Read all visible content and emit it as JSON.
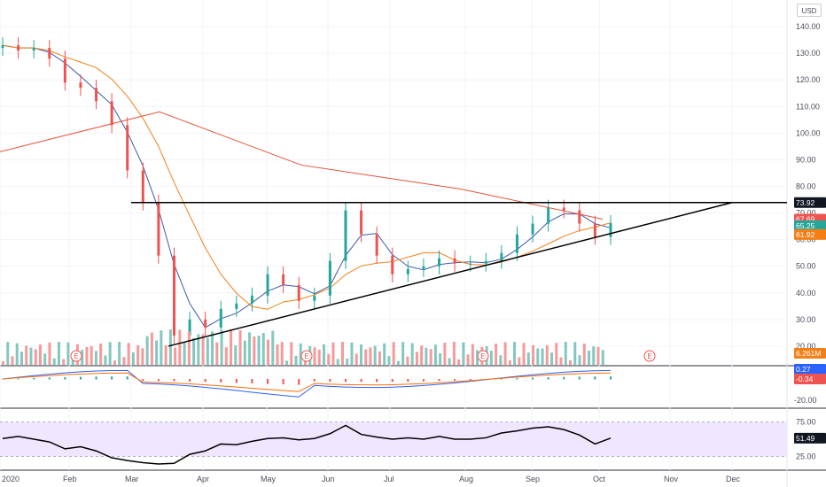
{
  "currency_label": "USD",
  "colors": {
    "up": "#26a69a",
    "down": "#ef5350",
    "volume_up": "#83c8c0",
    "volume_down": "#f59a9a",
    "sma_short": "#3d5aa9",
    "sma_mid": "#f57f17",
    "sma_long": "#e0533b",
    "trendline": "#000000",
    "rsi_band_fill": "#f0e6ff",
    "rsi_line": "#000000",
    "macd_line": "#2962ff",
    "signal_line": "#ff6d00",
    "tag_blue": "#2962ff",
    "tag_red": "#ef5350",
    "tag_orange": "#f57f17",
    "tag_teal": "#26a69a",
    "tag_black": "#131722"
  },
  "chart_data": [
    {
      "type": "candlestick",
      "pane": "price",
      "x_labels": [
        "2020",
        "Feb",
        "Mar",
        "Apr",
        "May",
        "Jun",
        "Jul",
        "Aug",
        "Sep",
        "Oct",
        "Nov",
        "Dec"
      ],
      "y_ticks": [
        "140.00",
        "130.00",
        "120.00",
        "110.00",
        "100.00",
        "90.00",
        "80.00",
        "70.00",
        "60.00",
        "50.00",
        "40.00",
        "30.00",
        "20.00"
      ],
      "ylim": [
        13,
        146
      ],
      "series": [
        {
          "name": "close",
          "x": [
            "2020-01-02",
            "2020-01-09",
            "2020-01-16",
            "2020-01-23",
            "2020-01-30",
            "2020-02-06",
            "2020-02-13",
            "2020-02-20",
            "2020-02-27",
            "2020-03-05",
            "2020-03-12",
            "2020-03-19",
            "2020-03-26",
            "2020-04-02",
            "2020-04-09",
            "2020-04-16",
            "2020-04-23",
            "2020-04-30",
            "2020-05-07",
            "2020-05-14",
            "2020-05-21",
            "2020-05-28",
            "2020-06-04",
            "2020-06-11",
            "2020-06-18",
            "2020-06-25",
            "2020-07-02",
            "2020-07-09",
            "2020-07-16",
            "2020-07-23",
            "2020-07-30",
            "2020-08-06",
            "2020-08-13",
            "2020-08-20",
            "2020-08-27",
            "2020-09-03",
            "2020-09-10",
            "2020-09-17",
            "2020-09-24",
            "2020-10-01"
          ],
          "values": [
            133,
            131,
            132,
            128,
            119,
            117,
            112,
            103,
            86,
            74,
            54,
            24,
            30,
            27,
            34,
            36,
            39,
            47,
            43,
            37,
            39,
            52,
            71,
            62,
            54,
            47,
            49,
            50,
            53,
            51,
            51,
            52,
            55,
            62,
            66,
            72,
            71,
            66,
            61,
            66.19
          ]
        }
      ],
      "price_labels": [
        "73.92",
        "67.69",
        "66.19",
        "65.25",
        "61.92"
      ],
      "earnings_markers": [
        "E",
        "E",
        "E",
        "E"
      ]
    },
    {
      "type": "bar",
      "pane": "volume",
      "title": "",
      "price_labels": [
        "6.261M"
      ],
      "note": "Volume histogram with 30-period average"
    },
    {
      "type": "line",
      "pane": "macd",
      "y_ticks": [
        "-20.00"
      ],
      "price_labels": [
        "0.27",
        "-0.34"
      ]
    },
    {
      "type": "line",
      "pane": "rsi",
      "y_ticks": [
        "75.00",
        "25.00"
      ],
      "ylim": [
        5,
        95
      ],
      "price_labels": [
        "51.49"
      ],
      "values": [
        51,
        54,
        50,
        46,
        36,
        39,
        33,
        23,
        19,
        16,
        14,
        15,
        28,
        33,
        43,
        42,
        47,
        51,
        52,
        49,
        51,
        58,
        70,
        57,
        53,
        50,
        52,
        50,
        54,
        50,
        50,
        52,
        59,
        62,
        66,
        68,
        64,
        56,
        43,
        51.49
      ]
    }
  ]
}
